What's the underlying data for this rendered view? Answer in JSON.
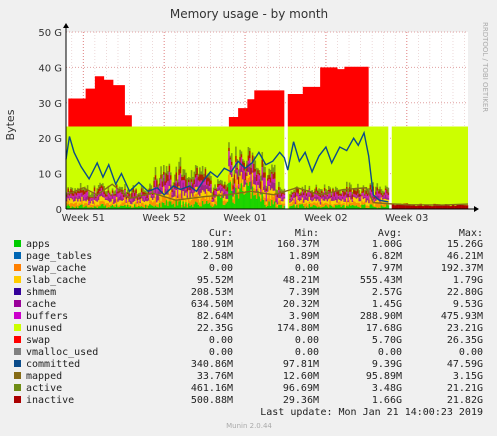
{
  "chart_data": {
    "type": "area",
    "title": "Memory usage - by month",
    "ylabel": "Bytes",
    "watermark": "RRDTOOL / TOBI OETIKER",
    "y_ticks": [
      {
        "value": 0,
        "label": "0"
      },
      {
        "value": 10,
        "label": "10 G"
      },
      {
        "value": 20,
        "label": "20 G"
      },
      {
        "value": 30,
        "label": "30 G"
      },
      {
        "value": 40,
        "label": "40 G"
      },
      {
        "value": 50,
        "label": "50 G"
      }
    ],
    "ylim": [
      0,
      50
    ],
    "x_ticks": [
      {
        "value": 0,
        "label": "Week 51"
      },
      {
        "value": 7,
        "label": "Week 52"
      },
      {
        "value": 14,
        "label": "Week 01"
      },
      {
        "value": 21,
        "label": "Week 02"
      },
      {
        "value": 28,
        "label": "Week 03"
      }
    ],
    "xlim": [
      -1.5,
      33.3
    ],
    "grid": true,
    "unused_band": {
      "color": "#CCFF00",
      "segments": [
        [
          -1.5,
          17.4
        ],
        [
          17.7,
          26.4
        ],
        [
          26.7,
          33.3
        ]
      ],
      "top": 23.3
    },
    "swap_segments": [
      {
        "points": [
          [
            -1.3,
            31.2
          ],
          [
            0.2,
            31.2
          ],
          [
            0.2,
            34
          ],
          [
            1.0,
            34
          ],
          [
            1.0,
            37.5
          ],
          [
            1.8,
            37.5
          ],
          [
            1.8,
            36.5
          ],
          [
            2.6,
            36.5
          ],
          [
            2.6,
            35
          ],
          [
            3.6,
            35
          ],
          [
            3.6,
            26.5
          ],
          [
            4.2,
            26.5
          ],
          [
            4.2,
            23.3
          ]
        ]
      },
      {
        "points": [
          [
            12.6,
            23.3
          ],
          [
            12.6,
            26
          ],
          [
            13.4,
            26
          ],
          [
            13.4,
            28.5
          ],
          [
            14.2,
            28.5
          ],
          [
            14.2,
            31
          ],
          [
            14.8,
            31
          ],
          [
            14.8,
            33.5
          ],
          [
            17.4,
            33.5
          ]
        ]
      },
      {
        "points": [
          [
            17.7,
            32.5
          ],
          [
            19.0,
            32.5
          ],
          [
            19.0,
            34.5
          ],
          [
            20.5,
            34.5
          ],
          [
            20.5,
            40
          ],
          [
            22.0,
            40
          ],
          [
            22.0,
            39.5
          ],
          [
            22.6,
            39.5
          ],
          [
            22.6,
            40.2
          ],
          [
            24.7,
            40.2
          ],
          [
            24.7,
            23.3
          ]
        ]
      }
    ],
    "committed_line": {
      "color": "#0B4C8A",
      "points": [
        [
          -1.5,
          14
        ],
        [
          -1.2,
          20.5
        ],
        [
          -0.8,
          16
        ],
        [
          -0.2,
          12
        ],
        [
          0.5,
          8.5
        ],
        [
          1.2,
          13
        ],
        [
          1.7,
          9
        ],
        [
          2.2,
          12.5
        ],
        [
          2.8,
          7
        ],
        [
          3.3,
          10
        ],
        [
          4.0,
          5
        ],
        [
          4.8,
          7.5
        ],
        [
          5.6,
          5
        ],
        [
          6.4,
          6
        ],
        [
          7.0,
          4
        ],
        [
          7.8,
          6.5
        ],
        [
          8.4,
          5.5
        ],
        [
          9.2,
          6.5
        ],
        [
          9.8,
          5
        ],
        [
          10.4,
          8
        ],
        [
          11.0,
          10.5
        ],
        [
          11.6,
          9
        ],
        [
          12.2,
          11.5
        ],
        [
          12.8,
          10.5
        ],
        [
          13.4,
          13.5
        ],
        [
          14.0,
          11.5
        ],
        [
          14.6,
          13
        ],
        [
          15.2,
          16
        ],
        [
          15.8,
          12.5
        ],
        [
          16.4,
          13.5
        ],
        [
          17.0,
          16
        ],
        [
          17.4,
          14.5
        ],
        [
          17.7,
          11
        ],
        [
          18.2,
          19
        ],
        [
          18.7,
          13.5
        ],
        [
          19.2,
          16
        ],
        [
          19.8,
          10.5
        ],
        [
          20.4,
          15
        ],
        [
          21.0,
          17.5
        ],
        [
          21.5,
          13
        ],
        [
          22.2,
          17.5
        ],
        [
          22.8,
          16.5
        ],
        [
          23.4,
          20
        ],
        [
          23.8,
          18
        ],
        [
          24.3,
          21.5
        ],
        [
          24.7,
          15
        ],
        [
          25.1,
          4
        ],
        [
          25.6,
          2.5
        ],
        [
          26.4,
          2
        ]
      ]
    },
    "mapped_line": {
      "color": "#856B16",
      "points": [
        [
          -1.5,
          4
        ],
        [
          0,
          6
        ],
        [
          1.2,
          4
        ],
        [
          2.5,
          7
        ],
        [
          4.0,
          3
        ],
        [
          6.0,
          4.5
        ],
        [
          8.0,
          2.5
        ],
        [
          10.5,
          3.5
        ],
        [
          12.5,
          4
        ],
        [
          14.5,
          5
        ],
        [
          16.5,
          4
        ],
        [
          18.5,
          6
        ],
        [
          20.5,
          4
        ],
        [
          22.5,
          5.5
        ],
        [
          24.5,
          6
        ],
        [
          25.1,
          1.8
        ],
        [
          26.4,
          1.5
        ],
        [
          28,
          1.2
        ],
        [
          31,
          1.1
        ],
        [
          33.3,
          1.4
        ]
      ]
    },
    "legend_columns": [
      "Cur:",
      "Min:",
      "Avg:",
      "Max:"
    ],
    "series": [
      {
        "name": "apps",
        "color": "#00CC00",
        "cur": "180.91M",
        "min": "160.37M",
        "avg": "1.00G",
        "max": "15.26G"
      },
      {
        "name": "page_tables",
        "color": "#0066B3",
        "cur": "2.58M",
        "min": "1.89M",
        "avg": "6.82M",
        "max": "46.21M"
      },
      {
        "name": "swap_cache",
        "color": "#FF8000",
        "cur": "0.00",
        "min": "0.00",
        "avg": "7.97M",
        "max": "192.37M"
      },
      {
        "name": "slab_cache",
        "color": "#FFCC00",
        "cur": "95.52M",
        "min": "48.21M",
        "avg": "555.43M",
        "max": "1.79G"
      },
      {
        "name": "shmem",
        "color": "#330099",
        "cur": "208.53M",
        "min": "7.39M",
        "avg": "2.57G",
        "max": "22.80G"
      },
      {
        "name": "cache",
        "color": "#990099",
        "cur": "634.50M",
        "min": "20.32M",
        "avg": "1.45G",
        "max": "9.53G"
      },
      {
        "name": "buffers",
        "color": "#CC00CC",
        "cur": "82.64M",
        "min": "3.90M",
        "avg": "288.90M",
        "max": "475.93M"
      },
      {
        "name": "unused",
        "color": "#CCFF00",
        "cur": "22.35G",
        "min": "174.80M",
        "avg": "17.68G",
        "max": "23.21G"
      },
      {
        "name": "swap",
        "color": "#FF0000",
        "cur": "0.00",
        "min": "0.00",
        "avg": "5.70G",
        "max": "26.35G"
      },
      {
        "name": "vmalloc_used",
        "color": "#808080",
        "cur": "0.00",
        "min": "0.00",
        "avg": "0.00",
        "max": "0.00"
      },
      {
        "name": "committed",
        "color": "#0B4C8A",
        "cur": "340.86M",
        "min": "97.81M",
        "avg": "9.39G",
        "max": "47.59G"
      },
      {
        "name": "mapped",
        "color": "#856B16",
        "cur": "33.76M",
        "min": "12.60M",
        "avg": "95.89M",
        "max": "3.15G"
      },
      {
        "name": "active",
        "color": "#6E8C14",
        "cur": "461.16M",
        "min": "96.69M",
        "avg": "3.48G",
        "max": "21.21G"
      },
      {
        "name": "inactive",
        "color": "#AA0000",
        "cur": "500.88M",
        "min": "29.36M",
        "avg": "1.66G",
        "max": "21.82G"
      }
    ],
    "last_update": "Last update:  Mon Jan 21 14:00:23 2019",
    "footer": "Munin 2.0.44"
  }
}
